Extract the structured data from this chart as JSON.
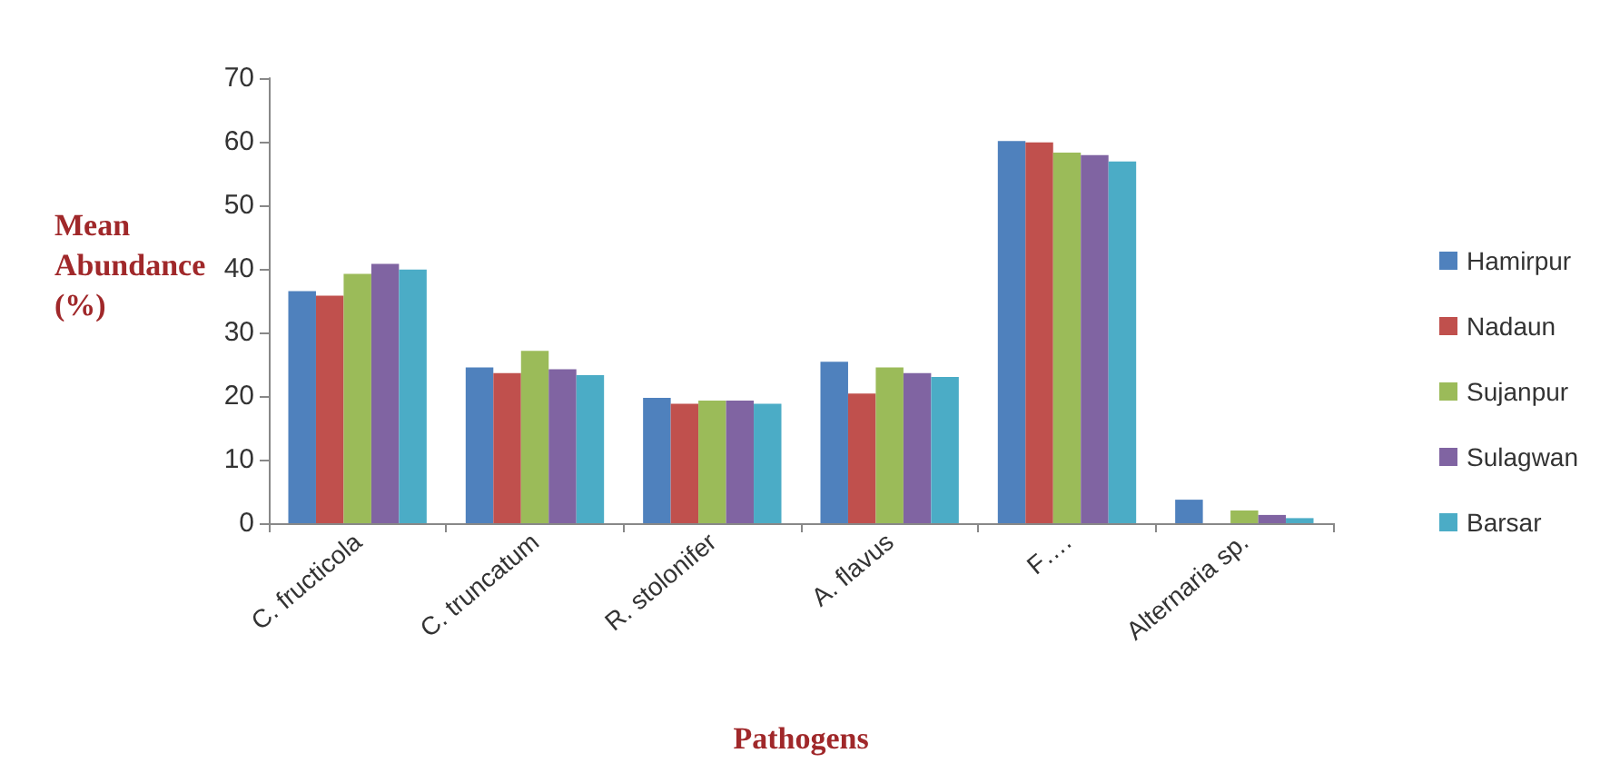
{
  "chart_data": {
    "type": "bar",
    "xlabel": "Pathogens",
    "ylabel": "Mean Abundance (%)",
    "categories": [
      "C. fructicola",
      "C. truncatum",
      "R. stolonifer",
      "A. flavus",
      "F….",
      "Alternaria sp."
    ],
    "series": [
      {
        "name": "Hamirpur",
        "color": "#4f81bd",
        "values": [
          36.5,
          24.5,
          19.7,
          25.4,
          60.1,
          3.7
        ]
      },
      {
        "name": "Nadaun",
        "color": "#c0504d",
        "values": [
          35.8,
          23.6,
          18.8,
          20.4,
          59.9,
          0
        ]
      },
      {
        "name": "Sujanpur",
        "color": "#9bbb59",
        "values": [
          39.2,
          27.1,
          19.3,
          24.5,
          58.3,
          2.0
        ]
      },
      {
        "name": "Sulagwan",
        "color": "#8064a2",
        "values": [
          40.8,
          24.2,
          19.3,
          23.6,
          57.9,
          1.3
        ]
      },
      {
        "name": "Barsar",
        "color": "#4bacc6",
        "values": [
          39.9,
          23.3,
          18.8,
          23.0,
          56.9,
          0.8
        ]
      }
    ],
    "ylim": [
      0,
      70
    ],
    "yticks": [
      0,
      10,
      20,
      30,
      40,
      50,
      60,
      70
    ],
    "grid": false,
    "legend": "right"
  }
}
